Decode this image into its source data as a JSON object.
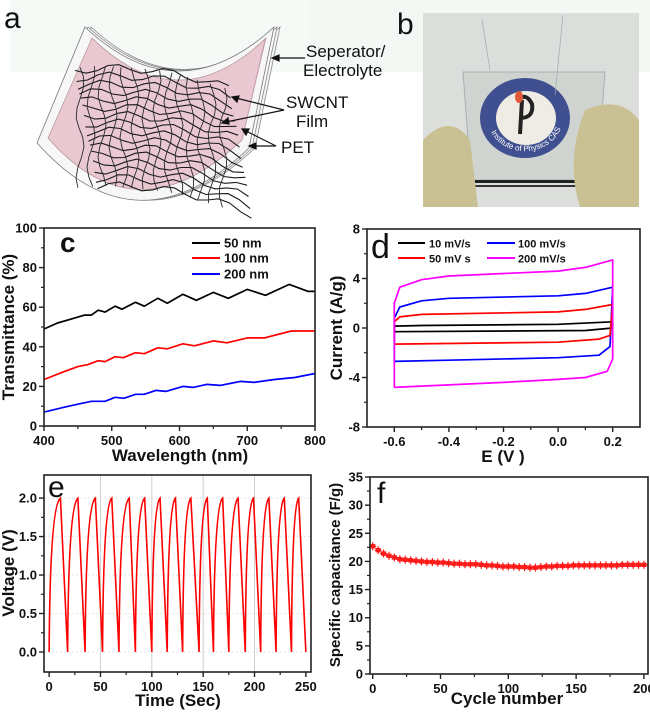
{
  "panels": {
    "a": {
      "letter": "a",
      "labels": {
        "separator_line1": "Seperator/",
        "separator_line2": "Electrolyte",
        "swcnt_line1": "SWCNT",
        "swcnt_line2": "Film",
        "pet": "PET"
      },
      "colors": {
        "layer_fill": "#e9c8d2",
        "edge": "#f5f5f5",
        "mesh": "#1a1a1a"
      }
    },
    "b": {
      "letter": "b",
      "logo_text": "Institute of Physics CAS",
      "logo_year": "1928",
      "colors": {
        "background": "#dcdedb",
        "glove": "#c9c194",
        "logo_ring": "#3f4f8f"
      }
    }
  },
  "chart_data": [
    {
      "panel": "c",
      "type": "line",
      "xlabel": "Wavelength (nm)",
      "ylabel": "Transmittance (%)",
      "xlim": [
        400,
        800
      ],
      "ylim": [
        0,
        100
      ],
      "xticks": [
        "400",
        "500",
        "600",
        "700",
        "800"
      ],
      "yticks": [
        "0",
        "20",
        "40",
        "60",
        "80",
        "100"
      ],
      "legend": "top-right",
      "grid": false,
      "series": [
        {
          "name": "50 nm",
          "color": "#000000",
          "points": [
            [
              400,
              49
            ],
            [
              420,
              52
            ],
            [
              440,
              54
            ],
            [
              460,
              56
            ],
            [
              470,
              56
            ],
            [
              480,
              58.5
            ],
            [
              490,
              57.5
            ],
            [
              505,
              60.5
            ],
            [
              515,
              59
            ],
            [
              535,
              62.5
            ],
            [
              548,
              60.5
            ],
            [
              568,
              64.5
            ],
            [
              582,
              62
            ],
            [
              605,
              66.5
            ],
            [
              625,
              63.5
            ],
            [
              650,
              67.5
            ],
            [
              672,
              64.5
            ],
            [
              700,
              69
            ],
            [
              727,
              66
            ],
            [
              762,
              71.5
            ],
            [
              790,
              68
            ],
            [
              800,
              68
            ]
          ]
        },
        {
          "name": "100 nm",
          "color": "#ff0000",
          "points": [
            [
              400,
              23.5
            ],
            [
              430,
              27.5
            ],
            [
              450,
              30
            ],
            [
              465,
              31
            ],
            [
              480,
              33
            ],
            [
              490,
              32.5
            ],
            [
              505,
              35
            ],
            [
              517,
              34.5
            ],
            [
              535,
              37
            ],
            [
              548,
              36.5
            ],
            [
              568,
              39.5
            ],
            [
              582,
              39
            ],
            [
              605,
              41.5
            ],
            [
              622,
              40.5
            ],
            [
              650,
              43
            ],
            [
              670,
              42
            ],
            [
              700,
              44.5
            ],
            [
              725,
              44.5
            ],
            [
              765,
              48
            ],
            [
              800,
              48
            ]
          ]
        },
        {
          "name": "200 nm",
          "color": "#0000ff",
          "points": [
            [
              400,
              7
            ],
            [
              430,
              9.5
            ],
            [
              450,
              11
            ],
            [
              470,
              12.5
            ],
            [
              490,
              12.5
            ],
            [
              505,
              14.5
            ],
            [
              518,
              14
            ],
            [
              535,
              16
            ],
            [
              548,
              16
            ],
            [
              565,
              18
            ],
            [
              580,
              17.5
            ],
            [
              605,
              20
            ],
            [
              620,
              19.5
            ],
            [
              640,
              21
            ],
            [
              660,
              20.5
            ],
            [
              690,
              22.5
            ],
            [
              710,
              22
            ],
            [
              740,
              23.5
            ],
            [
              770,
              24.5
            ],
            [
              800,
              26.5
            ]
          ]
        }
      ]
    },
    {
      "panel": "d",
      "type": "line",
      "xlabel": "E (V )",
      "ylabel": "Current (A/g)",
      "xlim": [
        -0.7,
        0.3
      ],
      "ylim": [
        -8,
        8
      ],
      "xticks": [
        "-0.6",
        "-0.4",
        "-0.2",
        "0.0",
        "0.2"
      ],
      "yticks": [
        "-8",
        "-4",
        "0",
        "4",
        "8"
      ],
      "legend": "top",
      "grid": false,
      "series": [
        {
          "name": "10 mV/s",
          "color": "#000000",
          "points": [
            [
              -0.6,
              -0.3
            ],
            [
              -0.6,
              0.15
            ],
            [
              -0.5,
              0.2
            ],
            [
              0,
              0.3
            ],
            [
              0.2,
              0.5
            ],
            [
              0.2,
              0
            ],
            [
              0.1,
              -0.2
            ],
            [
              -0.6,
              -0.3
            ]
          ]
        },
        {
          "name": "100 mV/s",
          "color": "#0000ff",
          "points": [
            [
              -0.6,
              -2.7
            ],
            [
              -0.6,
              0.8
            ],
            [
              -0.58,
              1.7
            ],
            [
              -0.5,
              2.2
            ],
            [
              -0.4,
              2.4
            ],
            [
              0,
              2.6
            ],
            [
              0.1,
              2.8
            ],
            [
              0.2,
              3.3
            ],
            [
              0.19,
              -1.5
            ],
            [
              0.15,
              -2.2
            ],
            [
              0,
              -2.4
            ],
            [
              -0.4,
              -2.6
            ],
            [
              -0.6,
              -2.7
            ]
          ]
        },
        {
          "name": "50 mV s",
          "color": "#ff0000",
          "points": [
            [
              -0.6,
              -1.3
            ],
            [
              -0.6,
              0.5
            ],
            [
              -0.58,
              0.9
            ],
            [
              -0.5,
              1.1
            ],
            [
              0,
              1.3
            ],
            [
              0.1,
              1.5
            ],
            [
              0.2,
              1.9
            ],
            [
              0.19,
              -0.6
            ],
            [
              0.15,
              -0.9
            ],
            [
              0,
              -1.15
            ],
            [
              -0.6,
              -1.3
            ]
          ]
        },
        {
          "name": "200 mV/s",
          "color": "#ff00ff",
          "points": [
            [
              -0.6,
              -4.8
            ],
            [
              -0.6,
              2.0
            ],
            [
              -0.58,
              3.3
            ],
            [
              -0.5,
              3.9
            ],
            [
              -0.4,
              4.2
            ],
            [
              -0.2,
              4.4
            ],
            [
              0,
              4.6
            ],
            [
              0.1,
              4.9
            ],
            [
              0.2,
              5.5
            ],
            [
              0.2,
              -2.5
            ],
            [
              0.18,
              -3.5
            ],
            [
              0.1,
              -4.0
            ],
            [
              0,
              -4.15
            ],
            [
              -0.2,
              -4.4
            ],
            [
              -0.4,
              -4.6
            ],
            [
              -0.6,
              -4.8
            ]
          ]
        }
      ]
    },
    {
      "panel": "e",
      "type": "line",
      "xlabel": "Time (Sec)",
      "ylabel": "Voltage (V)",
      "xlim": [
        -5,
        255
      ],
      "ylim": [
        -0.26,
        2.3
      ],
      "xticks": [
        "0",
        "50",
        "100",
        "150",
        "200",
        "250"
      ],
      "yticks": [
        "0.0",
        "0.5",
        "1.0",
        "1.5",
        "2.0"
      ],
      "grid": true,
      "series": [
        {
          "color": "#ff0000",
          "points": [
            [
              0,
              0
            ],
            [
              11,
              2
            ],
            [
              18,
              0
            ],
            [
              28,
              2
            ],
            [
              35,
              0
            ],
            [
              45,
              2
            ],
            [
              52,
              0
            ],
            [
              61,
              2
            ],
            [
              68,
              0
            ],
            [
              78,
              2
            ],
            [
              84,
              0
            ],
            [
              93,
              2
            ],
            [
              100,
              0
            ],
            [
              108,
              2
            ],
            [
              115,
              0
            ],
            [
              123,
              2
            ],
            [
              130,
              0
            ],
            [
              138,
              2
            ],
            [
              146,
              0
            ],
            [
              154,
              2
            ],
            [
              160,
              0
            ],
            [
              169,
              2
            ],
            [
              175,
              0
            ],
            [
              184,
              2
            ],
            [
              191,
              0
            ],
            [
              199,
              2
            ],
            [
              206,
              0
            ],
            [
              214,
              2
            ],
            [
              221,
              0
            ],
            [
              229,
              2
            ],
            [
              236,
              0
            ],
            [
              243,
              2
            ],
            [
              250,
              0
            ]
          ]
        }
      ]
    },
    {
      "panel": "f",
      "type": "scatter",
      "xlabel": "Cycle number",
      "ylabel": "Specific capacitance (F/g)",
      "xlim": [
        -2,
        203
      ],
      "ylim": [
        0,
        35
      ],
      "xticks": [
        "0",
        "50",
        "100",
        "150",
        "200"
      ],
      "yticks": [
        "0",
        "5",
        "10",
        "15",
        "20",
        "25",
        "30",
        "35"
      ],
      "grid": false,
      "series": [
        {
          "color": "#ff1a1a",
          "points": [
            [
              0,
              22.7
            ],
            [
              4,
              22.0
            ],
            [
              8,
              21.4
            ],
            [
              12,
              21.0
            ],
            [
              16,
              20.7
            ],
            [
              20,
              20.4
            ],
            [
              24,
              20.3
            ],
            [
              28,
              20.2
            ],
            [
              32,
              20.1
            ],
            [
              36,
              20.0
            ],
            [
              40,
              19.9
            ],
            [
              44,
              19.9
            ],
            [
              48,
              19.8
            ],
            [
              52,
              19.8
            ],
            [
              56,
              19.7
            ],
            [
              60,
              19.6
            ],
            [
              64,
              19.6
            ],
            [
              68,
              19.5
            ],
            [
              72,
              19.5
            ],
            [
              76,
              19.5
            ],
            [
              80,
              19.4
            ],
            [
              84,
              19.3
            ],
            [
              88,
              19.3
            ],
            [
              92,
              19.2
            ],
            [
              96,
              19.1
            ],
            [
              100,
              19.1
            ],
            [
              104,
              19.1
            ],
            [
              108,
              19.0
            ],
            [
              112,
              19.0
            ],
            [
              116,
              18.9
            ],
            [
              120,
              18.9
            ],
            [
              124,
              19.0
            ],
            [
              128,
              19.1
            ],
            [
              132,
              19.1
            ],
            [
              136,
              19.2
            ],
            [
              140,
              19.2
            ],
            [
              144,
              19.2
            ],
            [
              148,
              19.3
            ],
            [
              152,
              19.3
            ],
            [
              156,
              19.3
            ],
            [
              160,
              19.3
            ],
            [
              164,
              19.3
            ],
            [
              168,
              19.3
            ],
            [
              172,
              19.3
            ],
            [
              176,
              19.3
            ],
            [
              180,
              19.3
            ],
            [
              184,
              19.4
            ],
            [
              188,
              19.4
            ],
            [
              192,
              19.4
            ],
            [
              196,
              19.4
            ],
            [
              200,
              19.4
            ]
          ]
        }
      ]
    }
  ]
}
